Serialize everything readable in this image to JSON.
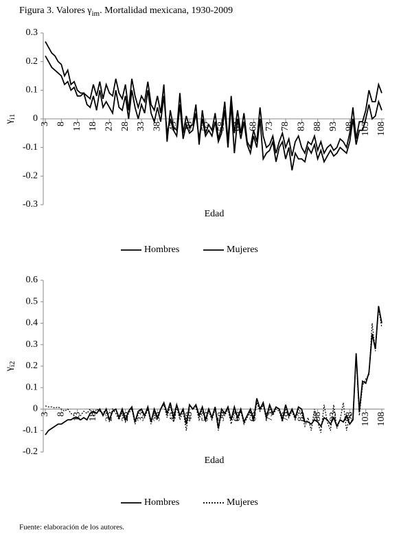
{
  "title": [
    "Figura 3. Valores γ",
    "im",
    ". Mortalidad mexicana, 1930-2009"
  ],
  "source": "Fuente: elaboración de los autores.",
  "chart_data": [
    {
      "type": "line",
      "ylabel": [
        "γ",
        "i1"
      ],
      "xlabel": "Edad",
      "x": [
        3,
        4,
        5,
        6,
        7,
        8,
        9,
        10,
        11,
        12,
        13,
        14,
        15,
        16,
        17,
        18,
        19,
        20,
        21,
        22,
        23,
        24,
        25,
        26,
        27,
        28,
        29,
        30,
        31,
        32,
        33,
        34,
        35,
        36,
        37,
        38,
        39,
        40,
        41,
        42,
        43,
        44,
        45,
        46,
        47,
        48,
        49,
        50,
        51,
        52,
        53,
        54,
        55,
        56,
        57,
        58,
        59,
        60,
        61,
        62,
        63,
        64,
        65,
        66,
        67,
        68,
        69,
        70,
        71,
        72,
        73,
        74,
        75,
        76,
        77,
        78,
        79,
        80,
        81,
        82,
        83,
        84,
        85,
        86,
        87,
        88,
        89,
        90,
        91,
        92,
        93,
        94,
        95,
        96,
        97,
        98,
        99,
        100,
        101,
        102,
        103,
        104,
        105,
        106,
        107,
        108
      ],
      "xlim": [
        3,
        108
      ],
      "xticks": [
        3,
        8,
        13,
        18,
        23,
        28,
        33,
        38,
        43,
        48,
        53,
        58,
        63,
        68,
        73,
        78,
        83,
        88,
        93,
        98,
        103,
        108
      ],
      "ylim": [
        -0.3,
        0.3
      ],
      "yticks": [
        -0.3,
        -0.2,
        -0.1,
        0,
        0.1,
        0.2,
        0.3
      ],
      "series": [
        {
          "name": "Hombres",
          "color": "#000000",
          "dash": "solid",
          "values": [
            0.27,
            0.25,
            0.23,
            0.22,
            0.2,
            0.19,
            0.15,
            0.17,
            0.12,
            0.13,
            0.1,
            0.09,
            0.09,
            0.08,
            0.07,
            0.12,
            0.08,
            0.13,
            0.07,
            0.12,
            0.09,
            0.08,
            0.14,
            0.09,
            0.07,
            0.12,
            0.03,
            0.14,
            0.08,
            0.04,
            0.08,
            0.06,
            0.13,
            0.05,
            0.03,
            0.08,
            0.02,
            0.12,
            -0.08,
            0.03,
            -0.03,
            -0.04,
            0.09,
            -0.05,
            0.01,
            -0.03,
            -0.02,
            0.05,
            -0.09,
            0.03,
            -0.05,
            -0.02,
            -0.04,
            0.02,
            -0.07,
            -0.03,
            0.06,
            -0.08,
            0.08,
            -0.05,
            0.03,
            -0.05,
            0.02,
            -0.08,
            -0.1,
            -0.04,
            -0.08,
            0.04,
            -0.06,
            -0.1,
            -0.09,
            -0.06,
            -0.12,
            -0.08,
            -0.05,
            -0.1,
            -0.07,
            -0.13,
            -0.08,
            -0.06,
            -0.1,
            -0.12,
            -0.08,
            -0.09,
            -0.06,
            -0.11,
            -0.08,
            -0.12,
            -0.1,
            -0.09,
            -0.11,
            -0.1,
            -0.07,
            -0.08,
            -0.1,
            -0.05,
            0.04,
            -0.07,
            -0.01,
            -0.01,
            0.03,
            0.1,
            0.06,
            0.06,
            0.12,
            0.09
          ]
        },
        {
          "name": "Mujeres",
          "color": "#000000",
          "dash": "solid",
          "values": [
            0.22,
            0.2,
            0.18,
            0.17,
            0.16,
            0.15,
            0.12,
            0.13,
            0.1,
            0.11,
            0.08,
            0.08,
            0.09,
            0.05,
            0.04,
            0.08,
            0.03,
            0.1,
            0.04,
            0.06,
            0.04,
            0.02,
            0.1,
            0.04,
            0.03,
            0.08,
            0.0,
            0.1,
            0.04,
            0.0,
            0.05,
            0.02,
            0.1,
            0.02,
            -0.01,
            0.04,
            -0.01,
            0.08,
            -0.05,
            0.0,
            -0.04,
            -0.06,
            0.05,
            -0.07,
            -0.02,
            -0.05,
            -0.04,
            0.02,
            -0.07,
            0.0,
            -0.06,
            -0.04,
            -0.06,
            -0.01,
            -0.08,
            -0.05,
            0.03,
            -0.1,
            0.05,
            -0.12,
            0.0,
            -0.07,
            -0.01,
            -0.09,
            -0.12,
            -0.06,
            -0.1,
            0.0,
            -0.14,
            -0.12,
            -0.11,
            -0.08,
            -0.15,
            -0.1,
            -0.08,
            -0.14,
            -0.1,
            -0.18,
            -0.12,
            -0.14,
            -0.14,
            -0.15,
            -0.1,
            -0.12,
            -0.09,
            -0.14,
            -0.11,
            -0.15,
            -0.13,
            -0.11,
            -0.13,
            -0.12,
            -0.1,
            -0.11,
            -0.12,
            -0.08,
            0.0,
            -0.09,
            -0.04,
            -0.04,
            0.0,
            0.05,
            0.0,
            0.01,
            0.06,
            0.03
          ]
        }
      ]
    },
    {
      "type": "line",
      "ylabel": [
        "γ",
        "i2"
      ],
      "xlabel": "Edad",
      "x": [
        3,
        4,
        5,
        6,
        7,
        8,
        9,
        10,
        11,
        12,
        13,
        14,
        15,
        16,
        17,
        18,
        19,
        20,
        21,
        22,
        23,
        24,
        25,
        26,
        27,
        28,
        29,
        30,
        31,
        32,
        33,
        34,
        35,
        36,
        37,
        38,
        39,
        40,
        41,
        42,
        43,
        44,
        45,
        46,
        47,
        48,
        49,
        50,
        51,
        52,
        53,
        54,
        55,
        56,
        57,
        58,
        59,
        60,
        61,
        62,
        63,
        64,
        65,
        66,
        67,
        68,
        69,
        70,
        71,
        72,
        73,
        74,
        75,
        76,
        77,
        78,
        79,
        80,
        81,
        82,
        83,
        84,
        85,
        86,
        87,
        88,
        89,
        90,
        91,
        92,
        93,
        94,
        95,
        96,
        97,
        98,
        99,
        100,
        101,
        102,
        103,
        104,
        105,
        106,
        107,
        108
      ],
      "xlim": [
        3,
        108
      ],
      "xticks": [
        3,
        8,
        13,
        18,
        23,
        28,
        33,
        38,
        43,
        48,
        53,
        58,
        63,
        68,
        73,
        78,
        83,
        88,
        93,
        98,
        103,
        108
      ],
      "ylim": [
        -0.2,
        0.6
      ],
      "yticks": [
        -0.2,
        -0.1,
        0,
        0.1,
        0.2,
        0.3,
        0.4,
        0.5,
        0.6
      ],
      "series": [
        {
          "name": "Hombres",
          "color": "#000000",
          "dash": "solid",
          "values": [
            -0.12,
            -0.1,
            -0.09,
            -0.08,
            -0.07,
            -0.07,
            -0.06,
            -0.05,
            -0.05,
            -0.04,
            -0.04,
            -0.05,
            -0.04,
            -0.05,
            -0.02,
            -0.01,
            -0.02,
            0.0,
            -0.03,
            0.0,
            -0.05,
            -0.01,
            0.0,
            -0.04,
            0.0,
            -0.05,
            -0.01,
            0.01,
            -0.06,
            -0.01,
            0.0,
            -0.03,
            0.01,
            -0.06,
            0.0,
            -0.04,
            0.0,
            0.03,
            -0.02,
            0.03,
            -0.04,
            0.02,
            -0.03,
            0.0,
            -0.07,
            0.02,
            0.0,
            0.02,
            -0.03,
            0.01,
            -0.05,
            0.0,
            -0.04,
            0.01,
            -0.09,
            0.0,
            -0.02,
            0.01,
            -0.05,
            0.01,
            -0.04,
            0.0,
            -0.06,
            -0.03,
            0.0,
            -0.05,
            0.05,
            0.0,
            0.03,
            -0.04,
            0.02,
            -0.02,
            0.01,
            0.0,
            -0.05,
            0.02,
            -0.03,
            0.0,
            -0.04,
            0.01,
            0.0,
            -0.06,
            -0.06,
            -0.07,
            -0.05,
            -0.06,
            -0.08,
            -0.04,
            -0.05,
            -0.07,
            -0.04,
            -0.08,
            -0.05,
            -0.06,
            -0.03,
            -0.07,
            -0.05,
            0.26,
            -0.01,
            0.13,
            0.12,
            0.17,
            0.35,
            0.28,
            0.48,
            0.4
          ]
        },
        {
          "name": "Mujeres",
          "color": "#000000",
          "dash": "dotted",
          "values": [
            0.015,
            0.01,
            0.01,
            0.005,
            0.01,
            0.0,
            -0.01,
            0.0,
            -0.02,
            -0.03,
            -0.04,
            -0.03,
            -0.01,
            -0.02,
            0.0,
            -0.03,
            0.0,
            -0.01,
            -0.02,
            0.0,
            -0.06,
            0.0,
            -0.02,
            -0.05,
            -0.01,
            -0.06,
            -0.02,
            0.0,
            -0.07,
            -0.02,
            0.0,
            -0.04,
            0.0,
            -0.07,
            -0.01,
            -0.05,
            0.0,
            0.02,
            -0.04,
            0.02,
            -0.06,
            0.01,
            -0.05,
            -0.01,
            -0.1,
            0.02,
            0.0,
            0.01,
            -0.05,
            0.0,
            -0.06,
            -0.01,
            -0.05,
            0.0,
            -0.1,
            -0.01,
            -0.03,
            0.0,
            -0.07,
            0.0,
            -0.05,
            -0.01,
            -0.07,
            -0.04,
            -0.01,
            -0.06,
            0.03,
            -0.01,
            0.02,
            -0.05,
            0.01,
            -0.03,
            0.0,
            -0.01,
            -0.06,
            0.01,
            -0.04,
            -0.01,
            -0.05,
            0.0,
            -0.02,
            -0.08,
            -0.04,
            -0.1,
            0.0,
            -0.06,
            -0.11,
            0.02,
            -0.06,
            -0.1,
            0.02,
            -0.09,
            -0.05,
            0.03,
            -0.1,
            -0.03,
            -0.02,
            0.24,
            -0.03,
            0.11,
            0.14,
            0.16,
            0.4,
            0.27,
            0.47,
            0.38
          ]
        }
      ]
    }
  ]
}
